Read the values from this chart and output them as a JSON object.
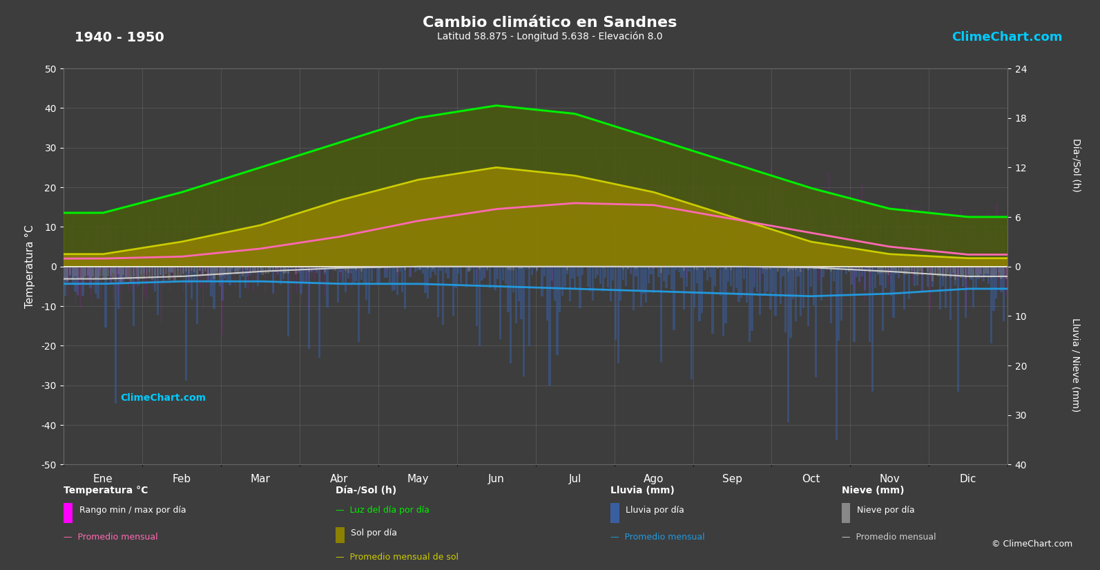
{
  "title": "Cambio climático en Sandnes",
  "subtitle": "Latitud 58.875 - Longitud 5.638 - Elevación 8.0",
  "year_range": "1940 - 1950",
  "bg_color": "#3d3d3d",
  "months": [
    "Ene",
    "Feb",
    "Mar",
    "Abr",
    "May",
    "Jun",
    "Jul",
    "Ago",
    "Sep",
    "Oct",
    "Nov",
    "Dic"
  ],
  "days_per_month": [
    31,
    28,
    31,
    30,
    31,
    30,
    31,
    31,
    30,
    31,
    30,
    31
  ],
  "temp_ylim": [
    -50,
    50
  ],
  "temp_avg": [
    2.0,
    2.5,
    4.5,
    7.5,
    11.5,
    14.5,
    16.0,
    15.5,
    12.0,
    8.5,
    5.0,
    3.0
  ],
  "temp_min": [
    -3.0,
    -2.5,
    -0.5,
    2.5,
    6.5,
    9.5,
    11.5,
    11.0,
    7.5,
    4.5,
    1.0,
    -1.0
  ],
  "temp_max": [
    7.0,
    7.5,
    9.5,
    12.5,
    16.5,
    19.5,
    20.5,
    20.0,
    16.0,
    12.5,
    9.0,
    7.0
  ],
  "daylight": [
    6.5,
    9.0,
    12.0,
    15.0,
    18.0,
    19.5,
    18.5,
    15.5,
    12.5,
    9.5,
    7.0,
    6.0
  ],
  "sunshine": [
    1.5,
    3.0,
    5.0,
    8.0,
    10.5,
    12.0,
    11.0,
    9.0,
    6.0,
    3.0,
    1.5,
    1.0
  ],
  "rain_avg": [
    3.5,
    3.0,
    3.0,
    3.5,
    3.5,
    4.0,
    4.5,
    5.0,
    5.5,
    6.0,
    5.5,
    4.5
  ],
  "snow_avg": [
    2.5,
    2.0,
    1.0,
    0.3,
    0.0,
    0.0,
    0.0,
    0.0,
    0.0,
    0.2,
    1.0,
    2.0
  ],
  "color_bg": "#3d3d3d",
  "color_temp_range": "#ff00ff",
  "color_temp_avg": "#ff69b4",
  "color_daylight": "#00ee00",
  "color_sunshine_fill": "#8b8000",
  "color_daylight_fill": "#4a5a10",
  "color_sunshine_line": "#cccc00",
  "color_rain_bar": "#3a5fa0",
  "color_snow_bar": "#888888",
  "color_rain_line": "#2299dd",
  "color_snow_line": "#cccccc",
  "color_grid": "#686868",
  "color_text": "#ffffff",
  "color_watermark": "#00ccff",
  "watermark": "ClimeChart.com",
  "copyright": "© ClimeChart.com",
  "rain_scale_max": 40,
  "sun_scale_max": 24
}
